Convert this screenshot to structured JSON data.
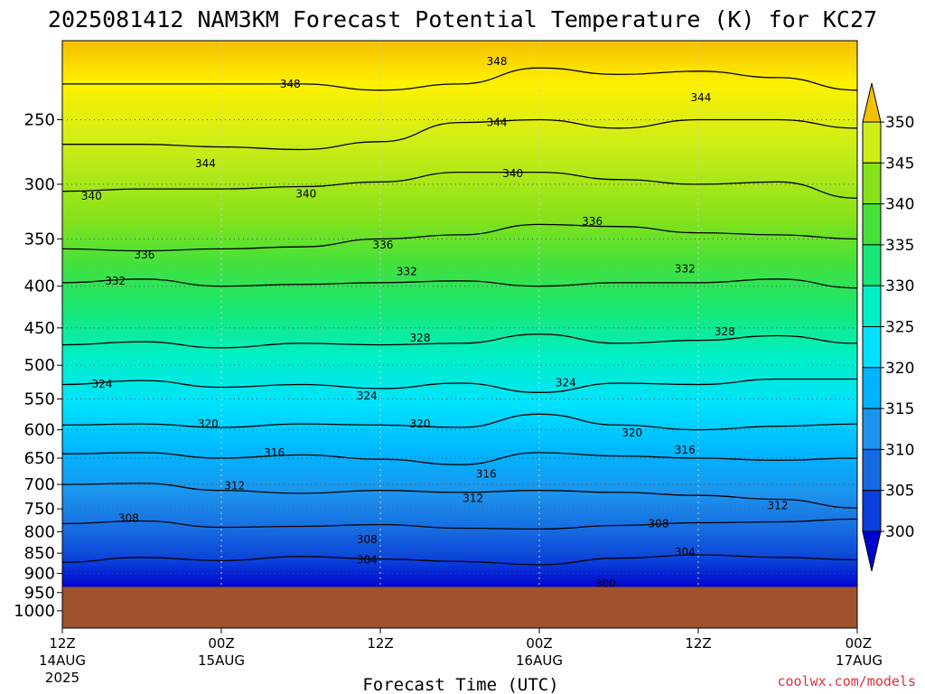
{
  "chart_data": {
    "type": "heatmap",
    "title": "2025081412 NAM3KM Forecast Potential Temperature (K) for KC27",
    "xlabel": "Forecast Time (UTC)",
    "ylabel": "",
    "credit": "coolwx.com/models",
    "y_scale": "log-pressure",
    "ylim": [
      1050,
      200
    ],
    "y_ticks": [
      250,
      300,
      350,
      400,
      450,
      500,
      550,
      600,
      650,
      700,
      750,
      800,
      850,
      900,
      950,
      1000
    ],
    "y_tick_labels": [
      "250",
      "300",
      "350",
      "400",
      "450",
      "500",
      "550",
      "600",
      "650",
      "700",
      "750",
      "800",
      "850",
      "900",
      "950",
      "1000"
    ],
    "x_ticks": [
      {
        "hours": 0,
        "label": "12Z",
        "sub1": "14AUG",
        "sub2": "2025"
      },
      {
        "hours": 12,
        "label": "00Z",
        "sub1": "15AUG",
        "sub2": ""
      },
      {
        "hours": 24,
        "label": "12Z",
        "sub1": "",
        "sub2": ""
      },
      {
        "hours": 36,
        "label": "00Z",
        "sub1": "16AUG",
        "sub2": ""
      },
      {
        "hours": 48,
        "label": "12Z",
        "sub1": "",
        "sub2": ""
      },
      {
        "hours": 60,
        "label": "00Z",
        "sub1": "17AUG",
        "sub2": ""
      }
    ],
    "xlim_hours": [
      0,
      60
    ],
    "grid": true,
    "ground_pressure": 935,
    "colorbar": {
      "labels": [
        "300",
        "305",
        "310",
        "315",
        "320",
        "325",
        "330",
        "335",
        "340",
        "345",
        "350"
      ],
      "colors": [
        "#0000cc",
        "#0a3fd9",
        "#1669e0",
        "#1c93ec",
        "#00b5ff",
        "#00e2ff",
        "#00f0c8",
        "#17e878",
        "#44e13b",
        "#86e21a",
        "#d0ee16",
        "#fff000",
        "#f5c000"
      ]
    },
    "series": [
      {
        "value": 304,
        "x": [
          0,
          6,
          12,
          18,
          24,
          30,
          36,
          42,
          48,
          54,
          60
        ],
        "y": [
          872,
          860,
          868,
          858,
          864,
          870,
          878,
          862,
          854,
          860,
          866
        ]
      },
      {
        "value": 308,
        "x": [
          0,
          6,
          12,
          18,
          24,
          30,
          36,
          42,
          48,
          54,
          60
        ],
        "y": [
          782,
          776,
          790,
          788,
          784,
          792,
          794,
          786,
          780,
          778,
          772
        ]
      },
      {
        "value": 312,
        "x": [
          0,
          6,
          12,
          18,
          24,
          30,
          36,
          42,
          48,
          54,
          60
        ],
        "y": [
          700,
          698,
          712,
          718,
          712,
          716,
          712,
          716,
          722,
          730,
          748
        ]
      },
      {
        "value": 316,
        "x": [
          0,
          6,
          12,
          18,
          24,
          30,
          36,
          42,
          48,
          54,
          60
        ],
        "y": [
          642,
          640,
          650,
          644,
          652,
          662,
          640,
          646,
          650,
          654,
          650
        ]
      },
      {
        "value": 320,
        "x": [
          0,
          6,
          12,
          18,
          24,
          30,
          36,
          42,
          48,
          54,
          60
        ],
        "y": [
          592,
          590,
          596,
          590,
          592,
          596,
          574,
          592,
          600,
          594,
          590
        ]
      },
      {
        "value": 324,
        "x": [
          0,
          6,
          12,
          18,
          24,
          30,
          36,
          42,
          48,
          54,
          60
        ],
        "y": [
          528,
          522,
          532,
          528,
          534,
          526,
          540,
          526,
          528,
          520,
          520
        ]
      },
      {
        "value": 328,
        "x": [
          0,
          6,
          12,
          18,
          24,
          30,
          36,
          42,
          48,
          54,
          60
        ],
        "y": [
          472,
          468,
          476,
          470,
          472,
          470,
          458,
          470,
          466,
          460,
          470
        ]
      },
      {
        "value": 332,
        "x": [
          0,
          6,
          12,
          18,
          24,
          30,
          36,
          42,
          48,
          54,
          60
        ],
        "y": [
          396,
          392,
          400,
          398,
          396,
          394,
          400,
          396,
          396,
          392,
          402
        ]
      },
      {
        "value": 336,
        "x": [
          0,
          6,
          12,
          18,
          24,
          30,
          36,
          42,
          48,
          54,
          60
        ],
        "y": [
          360,
          362,
          360,
          358,
          350,
          346,
          336,
          338,
          344,
          346,
          350
        ]
      },
      {
        "value": 340,
        "x": [
          0,
          6,
          12,
          18,
          24,
          30,
          36,
          42,
          48,
          54,
          60
        ],
        "y": [
          306,
          304,
          304,
          302,
          298,
          290,
          290,
          296,
          300,
          298,
          312
        ]
      },
      {
        "value": 344,
        "x": [
          0,
          6,
          12,
          18,
          24,
          30,
          36,
          42,
          48,
          54,
          60
        ],
        "y": [
          268,
          268,
          270,
          272,
          266,
          252,
          250,
          256,
          250,
          250,
          256
        ]
      },
      {
        "value": 348,
        "x": [
          0,
          6,
          12,
          18,
          24,
          30,
          36,
          42,
          48,
          54,
          60
        ],
        "y": [
          226,
          226,
          226,
          226,
          230,
          226,
          216,
          220,
          218,
          222,
          230
        ]
      }
    ],
    "contour_labels": [
      {
        "text": "348",
        "x": 17.2,
        "y": 226
      },
      {
        "text": "348",
        "x": 32.8,
        "y": 212
      },
      {
        "text": "344",
        "x": 48.2,
        "y": 235
      },
      {
        "text": "344",
        "x": 32.8,
        "y": 252
      },
      {
        "text": "344",
        "x": 10.8,
        "y": 283
      },
      {
        "text": "340",
        "x": 2.2,
        "y": 310
      },
      {
        "text": "340",
        "x": 18.4,
        "y": 308
      },
      {
        "text": "340",
        "x": 34.0,
        "y": 291
      },
      {
        "text": "336",
        "x": 40.0,
        "y": 333
      },
      {
        "text": "336",
        "x": 24.2,
        "y": 356
      },
      {
        "text": "336",
        "x": 6.2,
        "y": 366
      },
      {
        "text": "332",
        "x": 4.0,
        "y": 394
      },
      {
        "text": "332",
        "x": 26.0,
        "y": 384
      },
      {
        "text": "332",
        "x": 47.0,
        "y": 381
      },
      {
        "text": "328",
        "x": 27.0,
        "y": 463
      },
      {
        "text": "328",
        "x": 50.0,
        "y": 455
      },
      {
        "text": "324",
        "x": 3.0,
        "y": 527
      },
      {
        "text": "324",
        "x": 23.0,
        "y": 545
      },
      {
        "text": "324",
        "x": 38.0,
        "y": 525
      },
      {
        "text": "320",
        "x": 11.0,
        "y": 590
      },
      {
        "text": "320",
        "x": 27.0,
        "y": 590
      },
      {
        "text": "320",
        "x": 43.0,
        "y": 605
      },
      {
        "text": "316",
        "x": 16.0,
        "y": 640
      },
      {
        "text": "316",
        "x": 32.0,
        "y": 680
      },
      {
        "text": "316",
        "x": 47.0,
        "y": 635
      },
      {
        "text": "312",
        "x": 13.0,
        "y": 703
      },
      {
        "text": "312",
        "x": 31.0,
        "y": 728
      },
      {
        "text": "312",
        "x": 54.0,
        "y": 743
      },
      {
        "text": "308",
        "x": 5.0,
        "y": 770
      },
      {
        "text": "308",
        "x": 23.0,
        "y": 818
      },
      {
        "text": "308",
        "x": 45.0,
        "y": 782
      },
      {
        "text": "304",
        "x": 23.0,
        "y": 866
      },
      {
        "text": "304",
        "x": 47.0,
        "y": 848
      },
      {
        "text": "300",
        "x": 41.0,
        "y": 927
      }
    ]
  }
}
